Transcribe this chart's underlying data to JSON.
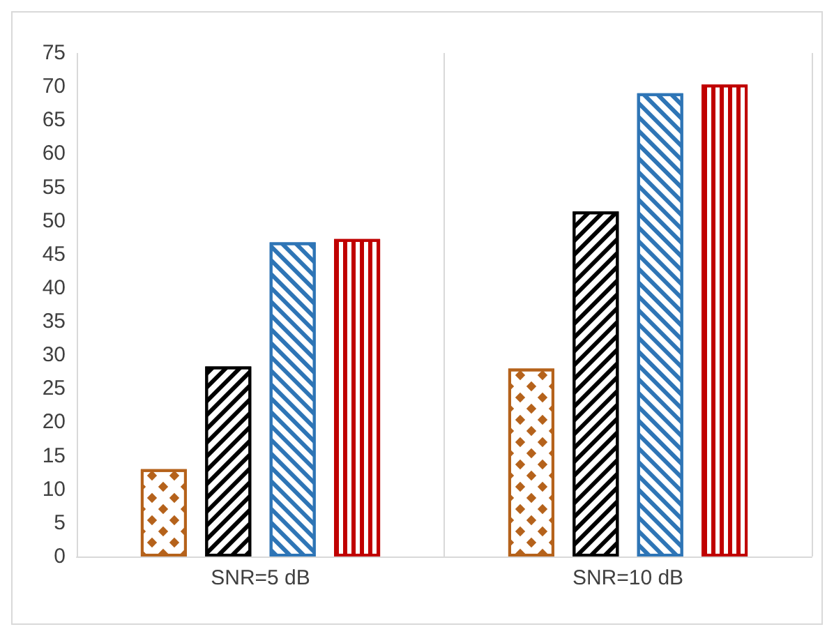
{
  "chart_data": {
    "type": "bar",
    "categories": [
      "SNR=5 dB",
      "SNR=10 dB"
    ],
    "series": [
      {
        "color": "#b5621b",
        "values": [
          13,
          28
        ]
      },
      {
        "color": "#000000",
        "values": [
          28.3,
          51.4
        ]
      },
      {
        "color": "#2e75b6",
        "values": [
          46.8,
          69
        ]
      },
      {
        "color": "#c00000",
        "values": [
          47.3,
          70.3
        ]
      }
    ],
    "ylim": [
      0,
      75
    ],
    "yticks": [
      0,
      5,
      10,
      15,
      20,
      25,
      30,
      35,
      40,
      45,
      50,
      55,
      60,
      65,
      70,
      75
    ],
    "grid": "x"
  }
}
